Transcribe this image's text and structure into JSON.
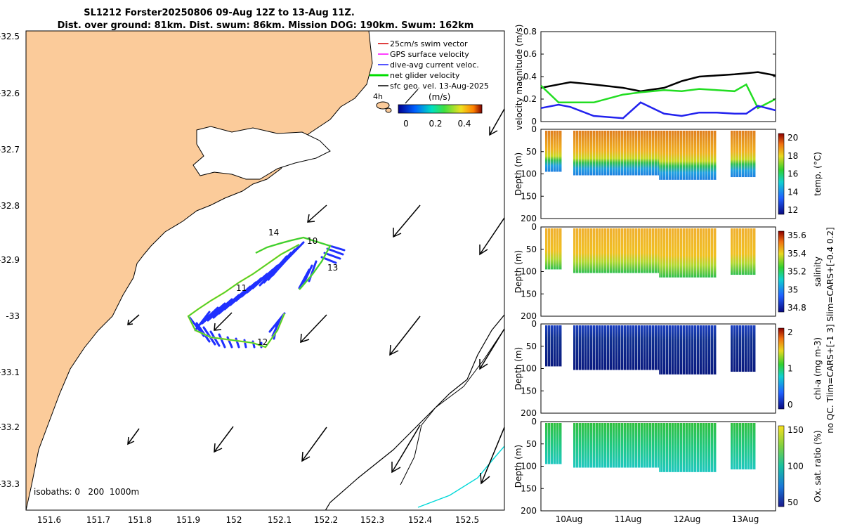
{
  "title": {
    "line1": "SL1212 Forster20250806 09-Aug 12Z to 13-Aug 11Z.",
    "line2": "Dist. over ground: 81km. Dist. swum: 86km. Mission DOG: 190km. Swum: 162km"
  },
  "map": {
    "lon_ticks": [
      "151.6",
      "151.7",
      "151.8",
      "151.9",
      "152",
      "152.1",
      "152.2",
      "152.3",
      "152.4",
      "152.5"
    ],
    "lat_ticks": [
      "-32.5",
      "-32.6",
      "-32.7",
      "-32.8",
      "-32.9",
      "-33",
      "-33.1",
      "-33.2",
      "-33.3"
    ],
    "isobaths_label": "isobaths: 0   200  1000m",
    "day_labels": [
      "14",
      "10",
      "13",
      "11",
      "12"
    ],
    "time_label": "4h",
    "legend": [
      {
        "label": "25cm/s swim vector",
        "color": "#d40000"
      },
      {
        "label": "GPS surface velocity",
        "color": "#ff00ff"
      },
      {
        "label": "dive-avg current veloc.",
        "color": "#1a1aff"
      },
      {
        "label": "net glider velocity",
        "color": "#00dd00"
      },
      {
        "label": "sfc geo. vel. 13-Aug-2025",
        "color": "#000000"
      }
    ],
    "colorbar": {
      "label": "(m/s)",
      "ticks": [
        "0",
        "0.2",
        "0.4"
      ]
    }
  },
  "chart_data": [
    {
      "type": "line",
      "title": "",
      "ylabel": "velocity magnitude (m/s)",
      "ylim": [
        0,
        0.8
      ],
      "yticks": [
        "0",
        "0.2",
        "0.4",
        "0.6",
        "0.8"
      ],
      "x": [
        9.5,
        9.8,
        10.0,
        10.4,
        10.9,
        11.2,
        11.6,
        11.9,
        12.2,
        12.5,
        12.8,
        13.0,
        13.2,
        13.5
      ],
      "series": [
        {
          "name": "black",
          "color": "#000000",
          "values": [
            0.3,
            0.33,
            0.35,
            0.33,
            0.3,
            0.27,
            0.3,
            0.36,
            0.4,
            0.41,
            0.42,
            0.43,
            0.44,
            0.41
          ]
        },
        {
          "name": "green",
          "color": "#22dd22",
          "values": [
            0.32,
            0.17,
            0.17,
            0.17,
            0.24,
            0.26,
            0.28,
            0.27,
            0.29,
            0.28,
            0.27,
            0.33,
            0.12,
            0.2
          ]
        },
        {
          "name": "blue",
          "color": "#2222ee",
          "values": [
            0.12,
            0.15,
            0.13,
            0.05,
            0.03,
            0.17,
            0.07,
            0.05,
            0.08,
            0.08,
            0.07,
            0.07,
            0.14,
            0.1
          ]
        }
      ]
    },
    {
      "type": "heatmap",
      "ylabel": "Depth (m)",
      "cbar_label": "temp. (°C)",
      "yticks": [
        "0",
        "50",
        "100",
        "150",
        "200"
      ],
      "cbar_ticks": [
        "20",
        "18",
        "16",
        "14",
        "12"
      ]
    },
    {
      "type": "heatmap",
      "ylabel": "Depth (m)",
      "cbar_label": "salinity",
      "yticks": [
        "0",
        "50",
        "100",
        "150",
        "200"
      ],
      "cbar_ticks": [
        "35.6",
        "35.4",
        "35.2",
        "35",
        "34.8"
      ]
    },
    {
      "type": "heatmap",
      "ylabel": "Depth (m)",
      "cbar_label": "chl-a (mg m-3)",
      "yticks": [
        "0",
        "50",
        "100",
        "150",
        "200"
      ],
      "cbar_ticks": [
        "2",
        "1",
        "0"
      ]
    },
    {
      "type": "heatmap",
      "ylabel": "Depth (m)",
      "cbar_label": "Ox. sat. ratio (%)",
      "yticks": [
        "0",
        "50",
        "100",
        "150",
        "200"
      ],
      "cbar_ticks": [
        "150",
        "100",
        "50"
      ],
      "xticks": [
        "10Aug",
        "11Aug",
        "12Aug",
        "13Aug"
      ]
    }
  ],
  "side_note": "no QC. Tlim=CARS+[-1 3] Slim=CARS+[-0.4 0.2]"
}
